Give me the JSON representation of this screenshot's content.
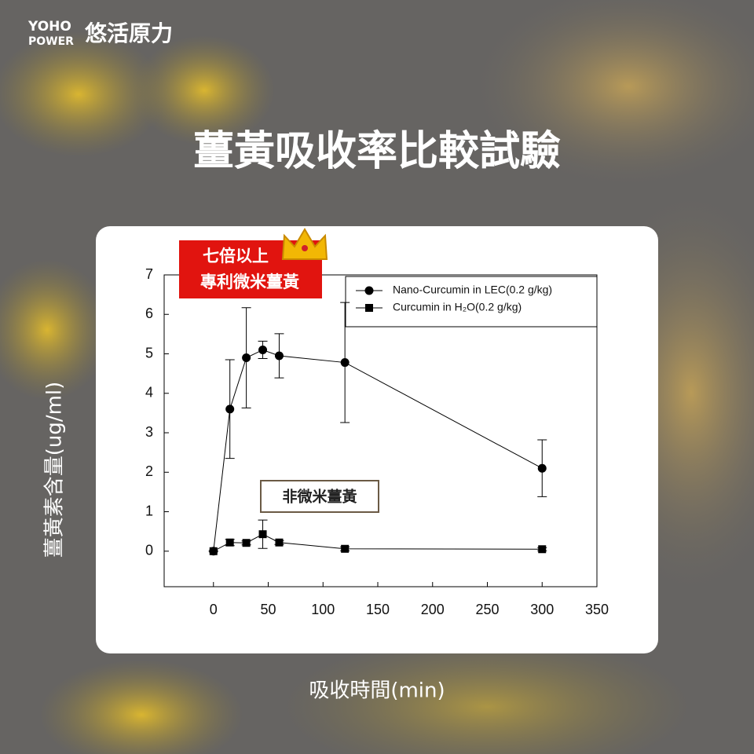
{
  "logo": {
    "top": "YOHO",
    "bottom": "POWER",
    "name": "悠活原力"
  },
  "headline": "薑黃吸收率比較試驗",
  "badge": {
    "line1": "七倍以上",
    "line2": "專利微米薑黃"
  },
  "annotation": "非微米薑黃",
  "chart_data": {
    "type": "line",
    "x_label": "吸收時間(min)",
    "y_label": "薑黃素含量(ug/ml)",
    "x": [
      0,
      15,
      30,
      45,
      60,
      120,
      300
    ],
    "series": [
      {
        "name": "Nano-Curcumin in LEC(0.2 g/kg)",
        "color": "#000000",
        "marker": "circle",
        "values": [
          0,
          3.6,
          4.9,
          5.1,
          4.95,
          4.78,
          2.1
        ],
        "errors": [
          0,
          1.25,
          1.27,
          0.22,
          0.56,
          1.52,
          0.72
        ]
      },
      {
        "name": "Curcumin in H₂O(0.2 g/kg)",
        "color": "#000000",
        "marker": "square",
        "values": [
          0,
          0.22,
          0.21,
          0.43,
          0.22,
          0.06,
          0.05
        ],
        "errors": [
          0,
          0.08,
          0.05,
          0.36,
          0.05,
          0.05,
          0.04
        ]
      }
    ],
    "xlim": [
      -45,
      350
    ],
    "ylim": [
      -0.9,
      7
    ],
    "xticks": [
      0,
      50,
      100,
      150,
      200,
      250,
      300,
      350
    ],
    "yticks": [
      0,
      1,
      2,
      3,
      4,
      5,
      6,
      7
    ],
    "legend": "upper right"
  }
}
